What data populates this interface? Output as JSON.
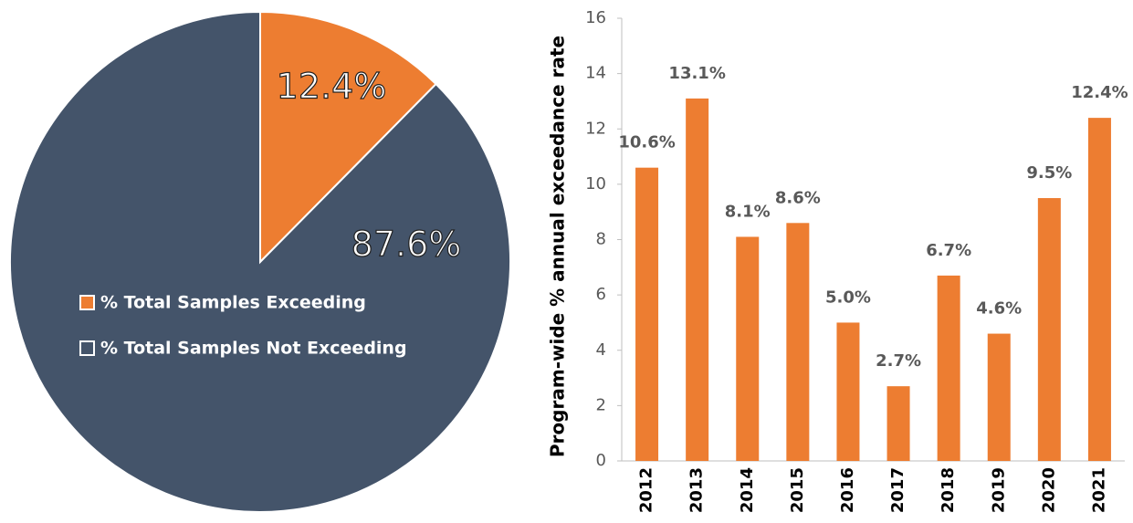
{
  "chart_data": [
    {
      "type": "pie",
      "categories": [
        "% Total Samples Exceeding",
        "% Total Samples Not Exceeding"
      ],
      "values": [
        12.4,
        87.6
      ],
      "value_labels": [
        "12.4%",
        "87.6%"
      ],
      "colors": [
        "#ed7d31",
        "#44546a"
      ],
      "legend": "center"
    },
    {
      "type": "bar",
      "y_label": "Program-wide % annual exceedance rate",
      "categories": [
        "2012",
        "2013",
        "2014",
        "2015",
        "2016",
        "2017",
        "2018",
        "2019",
        "2020",
        "2021"
      ],
      "values": [
        10.6,
        13.1,
        8.1,
        8.6,
        5.0,
        2.7,
        6.7,
        4.6,
        9.5,
        12.4
      ],
      "value_labels": [
        "10.6%",
        "13.1%",
        "8.1%",
        "8.6%",
        "5.0%",
        "2.7%",
        "6.7%",
        "4.6%",
        "9.5%",
        "12.4%"
      ],
      "color": "#ed7d31",
      "ylim": [
        0,
        16
      ],
      "yticks": [
        0,
        2,
        4,
        6,
        8,
        10,
        12,
        14,
        16
      ]
    }
  ]
}
